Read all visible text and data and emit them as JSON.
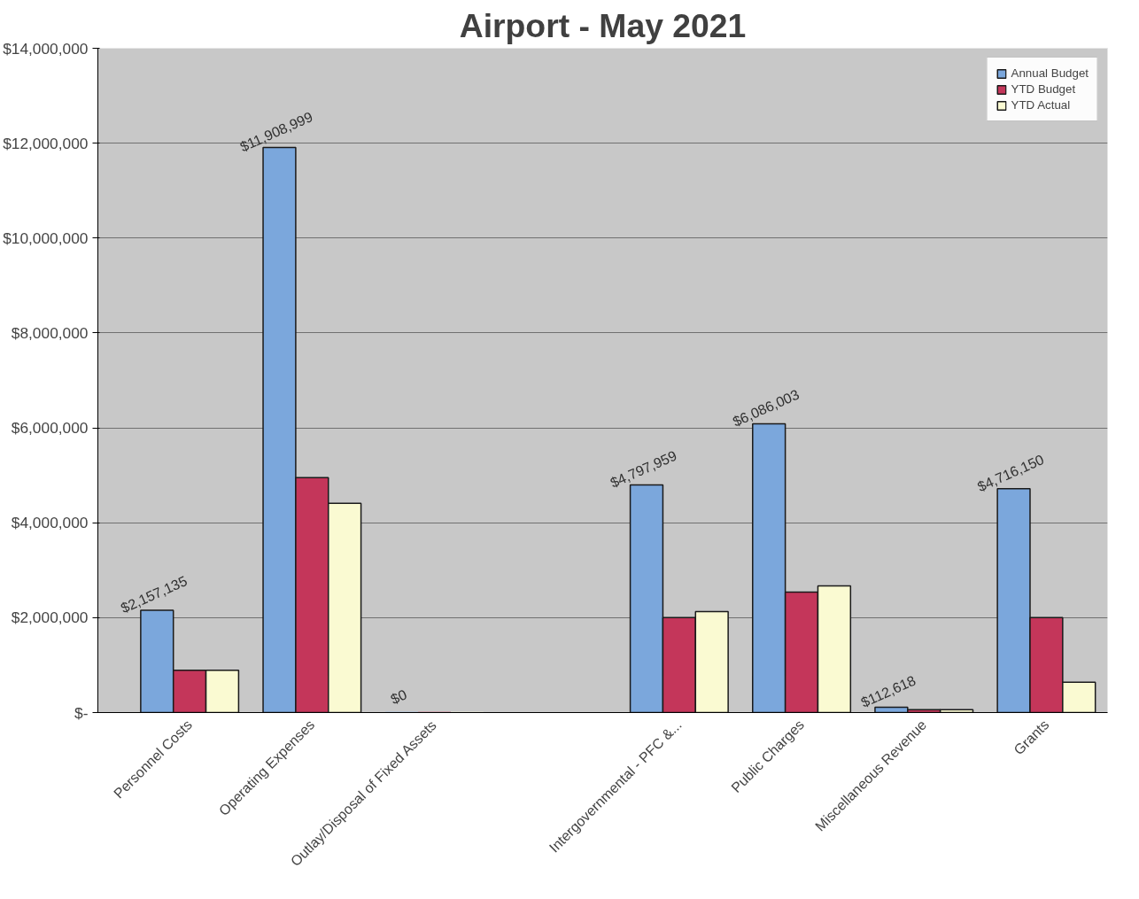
{
  "chart_data": {
    "type": "bar",
    "title": "Airport - May 2021",
    "categories": [
      "Personnel Costs",
      "Operating Expenses",
      "Outlay/Disposal of Fixed Assets",
      null,
      "Intergovernmental - PFC &...",
      "Public Charges",
      "Miscellaneous Revenue",
      "Grants"
    ],
    "series": [
      {
        "name": "Annual Budget",
        "color": "#7ba7dc",
        "values": [
          2157135,
          11908999,
          0,
          null,
          4797959,
          6086003,
          112618,
          4716150
        ],
        "value_labels": [
          "$2,157,135",
          "$11,908,999",
          "$0",
          null,
          "$4,797,959",
          "$6,086,003",
          "$112,618",
          "$4,716,150"
        ]
      },
      {
        "name": "YTD Budget",
        "color": "#c4365a",
        "values": [
          890000,
          4950000,
          0,
          null,
          2000000,
          2540000,
          60000,
          2000000
        ]
      },
      {
        "name": "YTD Actual",
        "color": "#fafad2",
        "values": [
          890000,
          4410000,
          0,
          null,
          2130000,
          2670000,
          60000,
          640000
        ]
      }
    ],
    "ylim": [
      0,
      14000000
    ],
    "yticks": [
      {
        "value": 0,
        "label": "$-"
      },
      {
        "value": 2000000,
        "label": "$2,000,000"
      },
      {
        "value": 4000000,
        "label": "$4,000,000"
      },
      {
        "value": 6000000,
        "label": "$6,000,000"
      },
      {
        "value": 8000000,
        "label": "$8,000,000"
      },
      {
        "value": 10000000,
        "label": "$10,000,000"
      },
      {
        "value": 12000000,
        "label": "$12,000,000"
      },
      {
        "value": 14000000,
        "label": "$14,000,000"
      }
    ],
    "grid": "y",
    "legend": "top right"
  }
}
